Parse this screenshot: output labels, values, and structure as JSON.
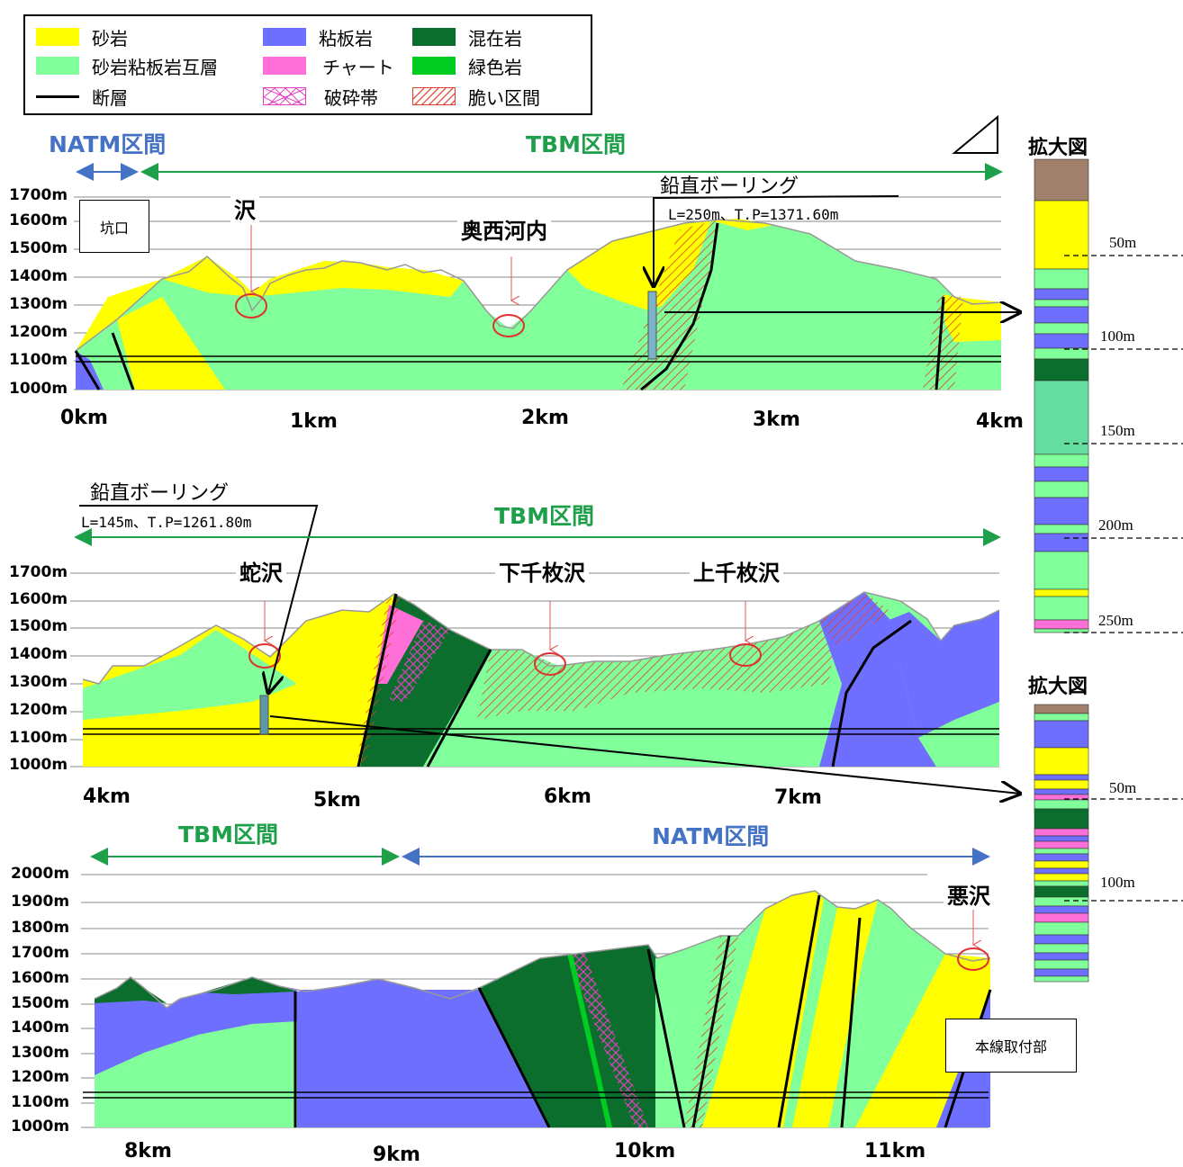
{
  "legend": {
    "sandstone": "砂岩",
    "slate": "粘板岩",
    "melange": "混在岩",
    "alternation": "砂岩粘板岩互層",
    "chert": "チャート",
    "greenstone": "緑色岩",
    "fault": "断層",
    "crushed_zone": "破砕帯",
    "fragile_section": "脆い区間"
  },
  "colors": {
    "sandstone": "#ffff00",
    "alternation": "#80ff9a",
    "slate": "#6f6fff",
    "chert": "#ff6fd8",
    "melange": "#0b6e2c",
    "greenstone": "#00cc22",
    "brown": "#a0806a",
    "natm": "#4472c4",
    "tbm": "#1ea04a"
  },
  "panel1": {
    "natm_label": "NATM区間",
    "tbm_label": "TBM区間",
    "alt_labels": [
      "1700m",
      "1600m",
      "1500m",
      "1400m",
      "1300m",
      "1200m",
      "1100m",
      "1000m"
    ],
    "km_labels": [
      "0km",
      "1km",
      "2km",
      "3km",
      "4km"
    ],
    "portal": "坑口",
    "places": [
      "沢",
      "奥西河内"
    ],
    "boring_title": "鉛直ボーリング",
    "boring_info": "L=250m、T.P=1371.60m"
  },
  "panel2": {
    "tbm_label": "TBM区間",
    "alt_labels": [
      "1700m",
      "1600m",
      "1500m",
      "1400m",
      "1300m",
      "1200m",
      "1100m",
      "1000m"
    ],
    "km_labels": [
      "4km",
      "5km",
      "6km",
      "7km"
    ],
    "places": [
      "蛇沢",
      "下千枚沢",
      "上千枚沢"
    ],
    "boring_title": "鉛直ボーリング",
    "boring_info": "L=145m、T.P=1261.80m"
  },
  "panel3": {
    "tbm_label": "TBM区間",
    "natm_label": "NATM区間",
    "alt_labels": [
      "2000m",
      "1900m",
      "1800m",
      "1700m",
      "1600m",
      "1500m",
      "1400m",
      "1300m",
      "1200m",
      "1100m",
      "1000m"
    ],
    "km_labels": [
      "8km",
      "9km",
      "10km",
      "11km"
    ],
    "places": [
      "悪沢"
    ],
    "junction": "本線取付部"
  },
  "enlarged1": {
    "title": "拡大図",
    "depths": [
      "50m",
      "100m",
      "150m",
      "200m",
      "250m"
    ]
  },
  "enlarged2": {
    "title": "拡大図",
    "depths": [
      "50m",
      "100m"
    ]
  }
}
